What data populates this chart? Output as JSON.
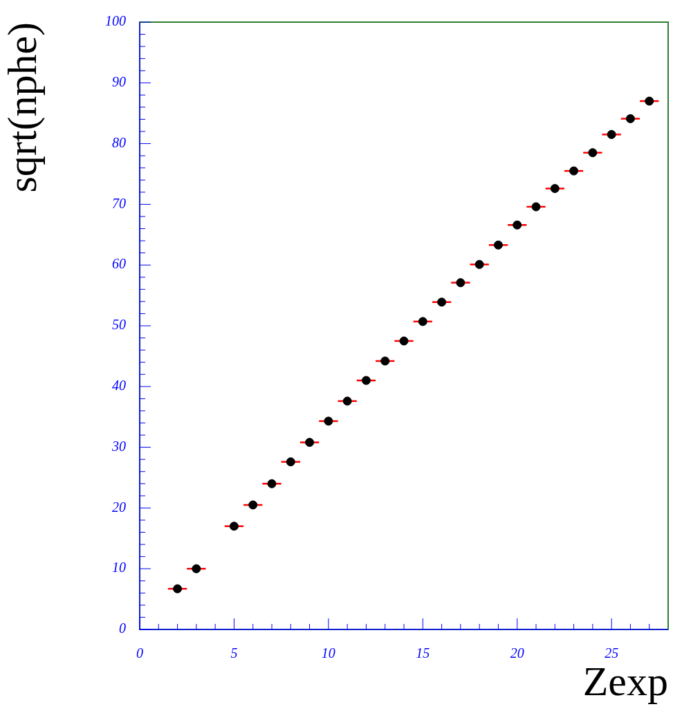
{
  "chart_data": {
    "type": "scatter",
    "xlabel": "Zexp",
    "ylabel": "sqrt(nphe)",
    "xlim": [
      0,
      28
    ],
    "ylim": [
      0,
      100
    ],
    "xticks": [
      0,
      {
        "value": 1,
        "label": null
      },
      {
        "value": 2,
        "label": null
      },
      {
        "value": 3,
        "label": null
      },
      {
        "value": 4,
        "label": null
      },
      5,
      {
        "value": 6,
        "label": null
      },
      {
        "value": 7,
        "label": null
      },
      {
        "value": 8,
        "label": null
      },
      {
        "value": 9,
        "label": null
      },
      10,
      {
        "value": 11,
        "label": null
      },
      {
        "value": 12,
        "label": null
      },
      {
        "value": 13,
        "label": null
      },
      {
        "value": 14,
        "label": null
      },
      15,
      {
        "value": 16,
        "label": null
      },
      {
        "value": 17,
        "label": null
      },
      {
        "value": 18,
        "label": null
      },
      {
        "value": 19,
        "label": null
      },
      20,
      {
        "value": 21,
        "label": null
      },
      {
        "value": 22,
        "label": null
      },
      {
        "value": 23,
        "label": null
      },
      {
        "value": 24,
        "label": null
      },
      25,
      {
        "value": 26,
        "label": null
      },
      {
        "value": 27,
        "label": null
      }
    ],
    "yticks": [
      0,
      {
        "value": 2,
        "label": null
      },
      {
        "value": 4,
        "label": null
      },
      {
        "value": 6,
        "label": null
      },
      {
        "value": 8,
        "label": null
      },
      10,
      {
        "value": 12,
        "label": null
      },
      {
        "value": 14,
        "label": null
      },
      {
        "value": 16,
        "label": null
      },
      {
        "value": 18,
        "label": null
      },
      20,
      {
        "value": 22,
        "label": null
      },
      {
        "value": 24,
        "label": null
      },
      {
        "value": 26,
        "label": null
      },
      {
        "value": 28,
        "label": null
      },
      30,
      {
        "value": 32,
        "label": null
      },
      {
        "value": 34,
        "label": null
      },
      {
        "value": 36,
        "label": null
      },
      {
        "value": 38,
        "label": null
      },
      40,
      {
        "value": 42,
        "label": null
      },
      {
        "value": 44,
        "label": null
      },
      {
        "value": 46,
        "label": null
      },
      {
        "value": 48,
        "label": null
      },
      50,
      {
        "value": 52,
        "label": null
      },
      {
        "value": 54,
        "label": null
      },
      {
        "value": 56,
        "label": null
      },
      {
        "value": 58,
        "label": null
      },
      60,
      {
        "value": 62,
        "label": null
      },
      {
        "value": 64,
        "label": null
      },
      {
        "value": 66,
        "label": null
      },
      {
        "value": 68,
        "label": null
      },
      70,
      {
        "value": 72,
        "label": null
      },
      {
        "value": 74,
        "label": null
      },
      {
        "value": 76,
        "label": null
      },
      {
        "value": 78,
        "label": null
      },
      80,
      {
        "value": 82,
        "label": null
      },
      {
        "value": 84,
        "label": null
      },
      {
        "value": 86,
        "label": null
      },
      {
        "value": 88,
        "label": null
      },
      90,
      {
        "value": 92,
        "label": null
      },
      {
        "value": 94,
        "label": null
      },
      {
        "value": 96,
        "label": null
      },
      {
        "value": 98,
        "label": null
      },
      100
    ],
    "grid": false,
    "legend": false,
    "marker": "circle",
    "x": [
      2,
      3,
      5,
      6,
      7,
      8,
      9,
      10,
      11,
      12,
      13,
      14,
      15,
      16,
      17,
      18,
      19,
      20,
      21,
      22,
      23,
      24,
      25,
      26,
      27
    ],
    "values": [
      6.7,
      10.0,
      17.0,
      20.5,
      24.0,
      27.6,
      30.8,
      34.3,
      37.6,
      41.0,
      44.2,
      47.5,
      50.7,
      53.9,
      57.1,
      60.1,
      63.3,
      66.6,
      69.6,
      72.6,
      75.5,
      78.5,
      81.5,
      84.1,
      87.0
    ],
    "xerrors": [
      0.5,
      0.5,
      0.5,
      0.5,
      0.5,
      0.5,
      0.5,
      0.5,
      0.5,
      0.5,
      0.5,
      0.5,
      0.5,
      0.5,
      0.5,
      0.5,
      0.5,
      0.5,
      0.5,
      0.5,
      0.5,
      0.5,
      0.5,
      0.5,
      0.5
    ],
    "color": "#000000"
  }
}
